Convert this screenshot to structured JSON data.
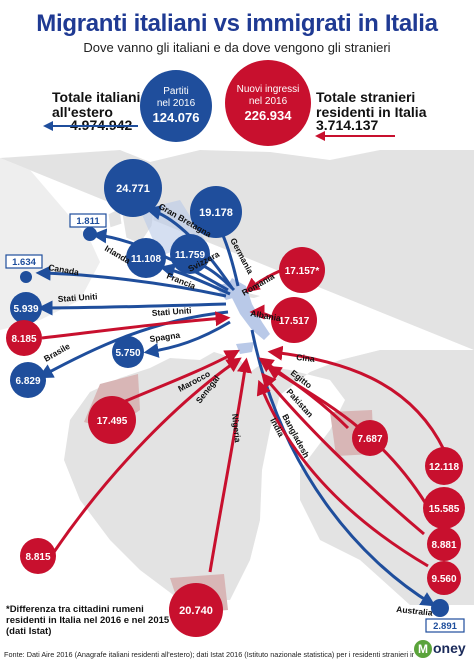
{
  "header": {
    "title": "Migranti italiani vs immigrati in Italia",
    "subtitle": "Dove vanno gli italiani e da dove vengono gli stranieri"
  },
  "totals": {
    "left_label_1": "Totale italiani",
    "left_label_2": "all'estero",
    "left_value": "4.974.942",
    "right_label_1": "Totale stranieri",
    "right_label_2": "residenti in Italia",
    "right_value": "3.714.137",
    "partiti_label_1": "Partiti",
    "partiti_label_2": "nel 2016",
    "partiti_value": "124.076",
    "ingressi_label_1": "Nuovi ingressi",
    "ingressi_label_2": "nel 2016",
    "ingressi_value": "226.934"
  },
  "colors": {
    "blue": "#1f4e9c",
    "red": "#c8102e",
    "land": "#e3e3e3",
    "sea": "#ffffff"
  },
  "emigration": [
    {
      "country": "Gran Bretagna",
      "value": "24.771"
    },
    {
      "country": "Germania",
      "value": "19.178"
    },
    {
      "country": "Svizzera",
      "value": "11.759"
    },
    {
      "country": "Francia",
      "value": "11.108"
    },
    {
      "country": "Irlanda",
      "value": "1.811"
    },
    {
      "country": "Canada",
      "value": "1.634"
    },
    {
      "country": "Stati Uniti",
      "value": "5.939"
    },
    {
      "country": "Brasile",
      "value": "6.829"
    },
    {
      "country": "Spagna",
      "value": "5.750"
    },
    {
      "country": "Australia",
      "value": "2.891"
    }
  ],
  "immigration": [
    {
      "country": "Romania",
      "value": "17.157*"
    },
    {
      "country": "Albania",
      "value": "17.517"
    },
    {
      "country": "Stati Uniti",
      "value": "8.185"
    },
    {
      "country": "Marocco",
      "value": "17.495"
    },
    {
      "country": "Senegal",
      "value": "8.815"
    },
    {
      "country": "Nigeria",
      "value": "20.740"
    },
    {
      "country": "Egitto",
      "value": "7.687"
    },
    {
      "country": "Cina",
      "value": "12.118"
    },
    {
      "country": "Pakistan",
      "value": "15.585"
    },
    {
      "country": "India",
      "value": "8.881"
    },
    {
      "country": "Bangladesh",
      "value": "9.560"
    }
  ],
  "footnote": "*Differenza tra cittadini rumeni residenti in Italia nel 2016 e nel 2015 (dati Istat)",
  "source": "Fonte: Dati Aire 2016 (Anagrafe italiani residenti all'estero); dati Istat 2016 (Istituto nazionale statistica) per i residenti stranieri in Italia",
  "logo": {
    "mark": "M",
    "text": "oney"
  }
}
